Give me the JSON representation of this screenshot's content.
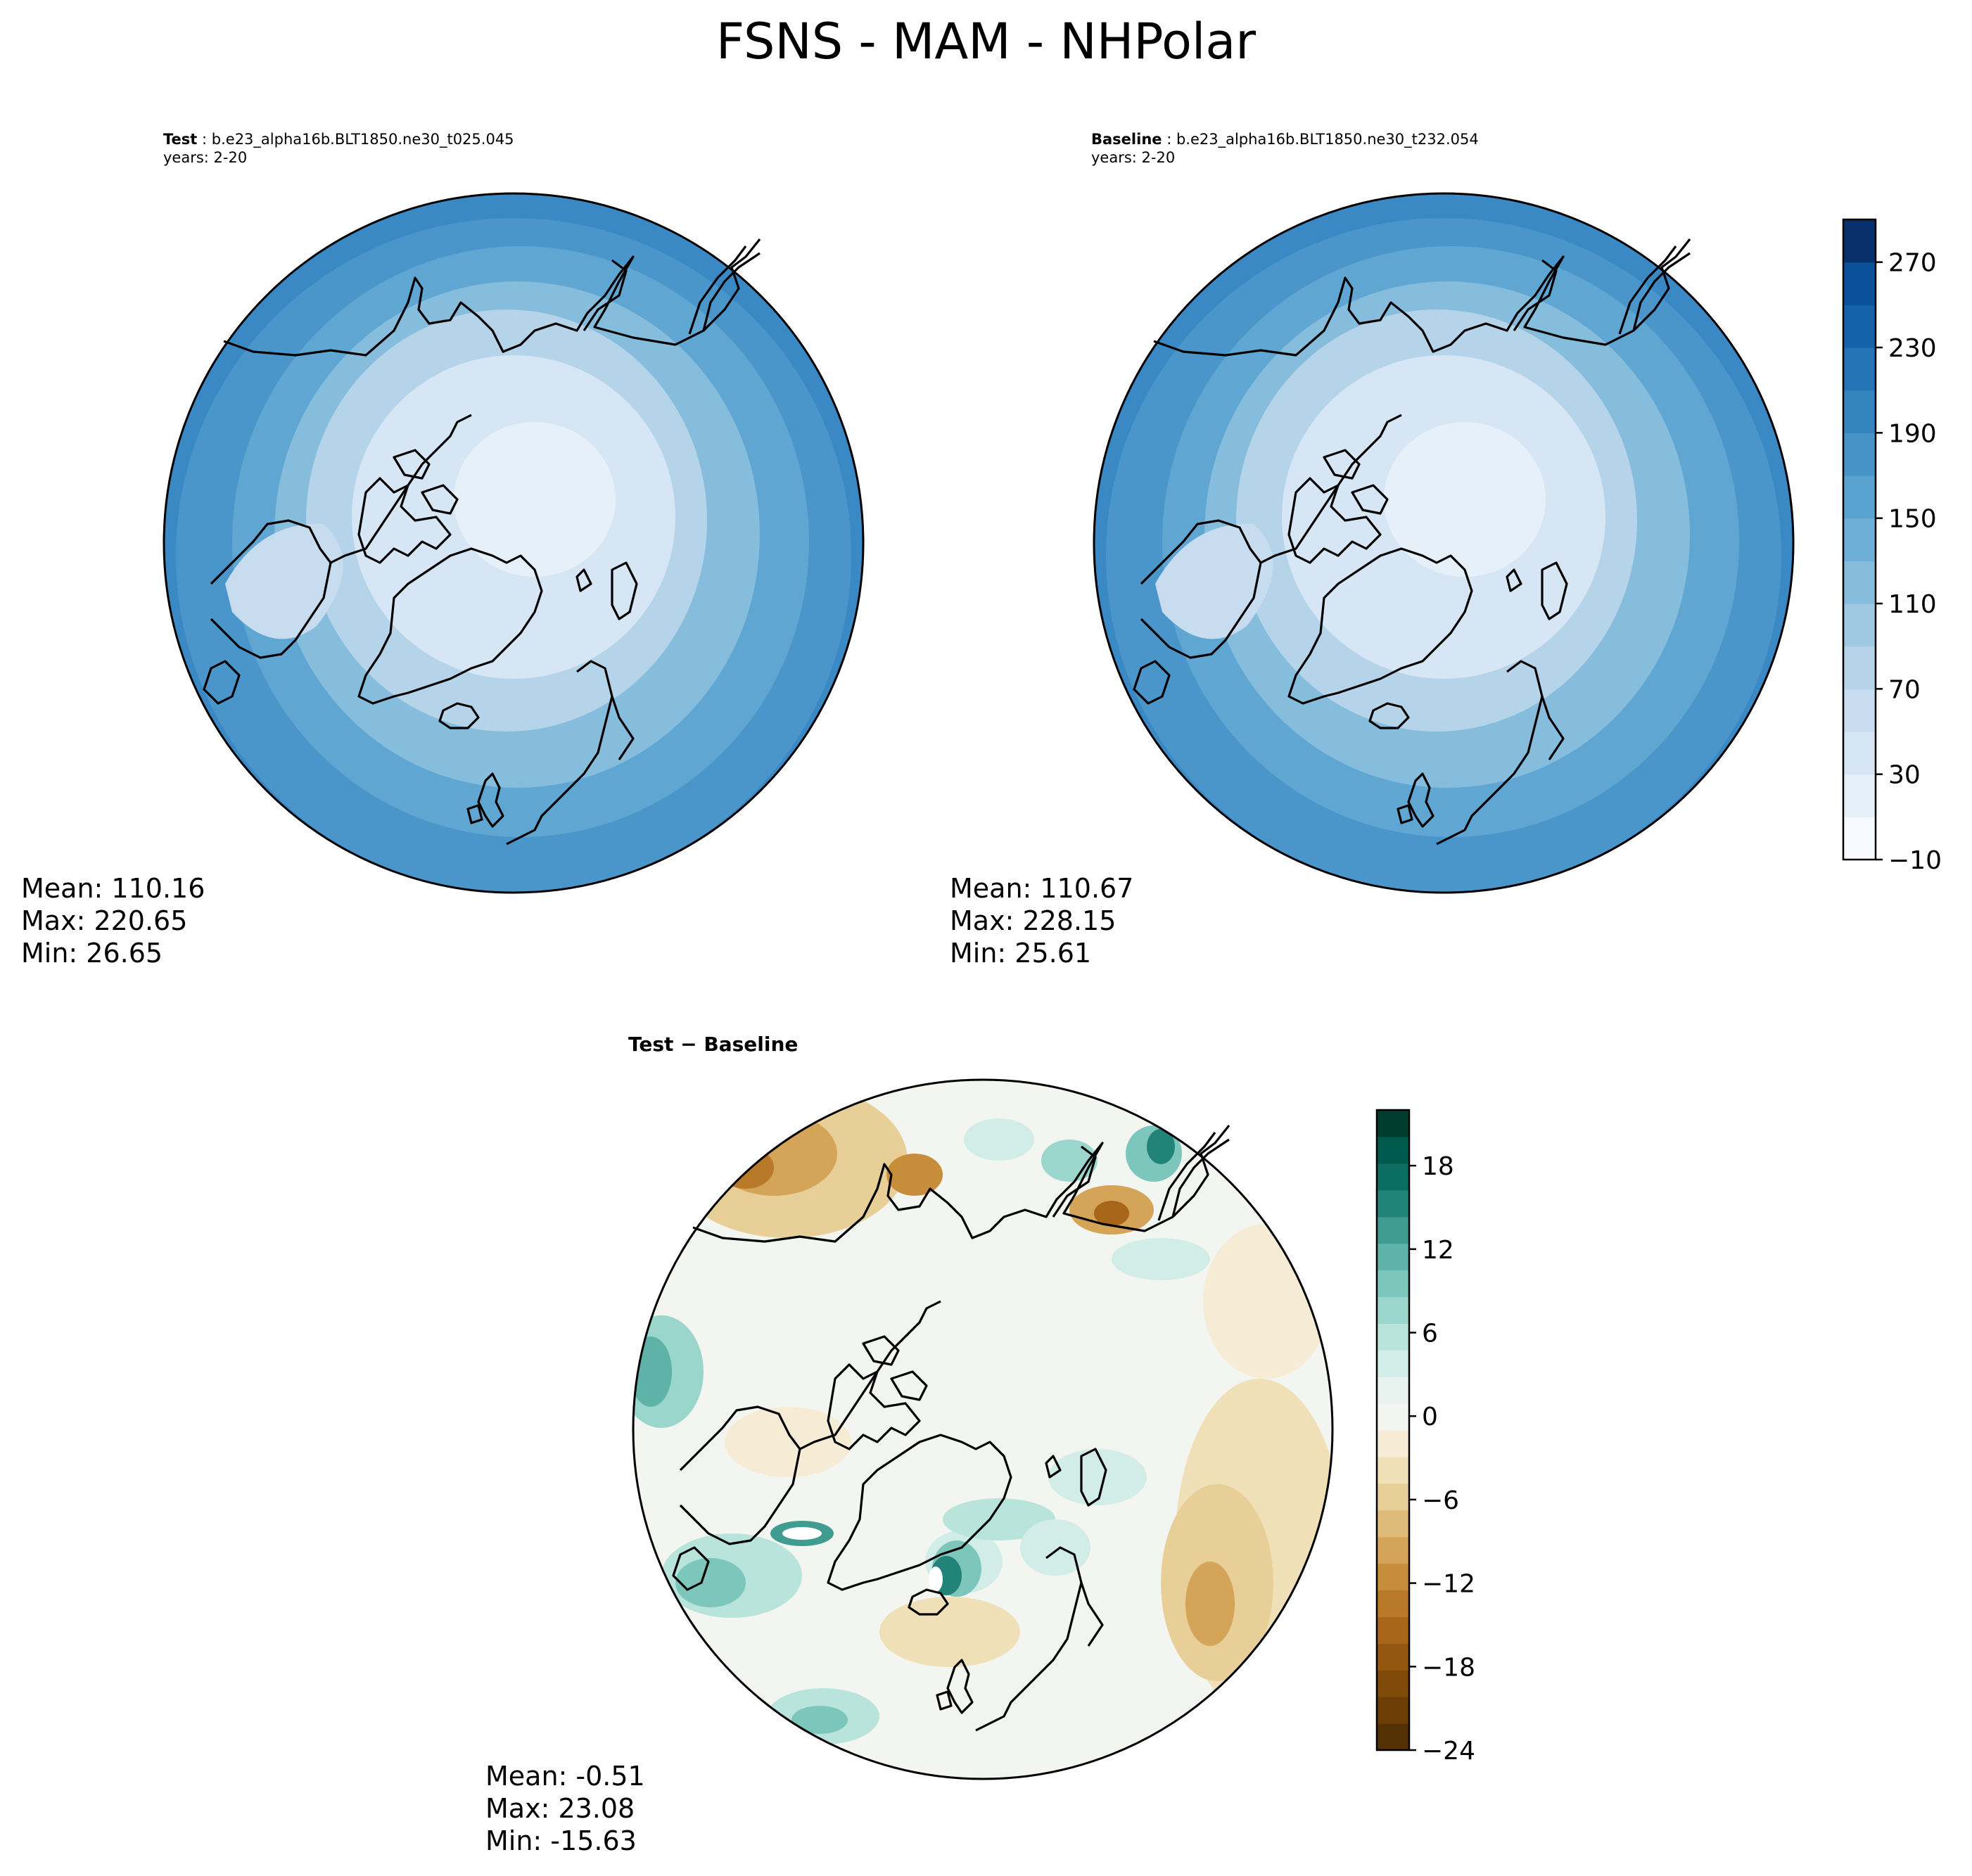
{
  "title": "FSNS - MAM - NHPolar",
  "panels": {
    "test": {
      "label": "Test",
      "case": "b.e23_alpha16b.BLT1850.ne30_t025.045",
      "years": "years: 2-20",
      "mean": "Mean: 110.16",
      "max": "Max: 220.65",
      "min": "Min: 26.65"
    },
    "baseline": {
      "label": "Baseline",
      "case": "b.e23_alpha16b.BLT1850.ne30_t232.054",
      "years": "years: 2-20",
      "mean": "Mean: 110.67",
      "max": "Max: 228.15",
      "min": "Min: 25.61"
    },
    "diff": {
      "title": "Test − Baseline",
      "mean": "Mean: -0.51",
      "max": "Max: 23.08",
      "min": "Min: -15.63"
    }
  },
  "colorbars": {
    "main": {
      "ticks": [
        "−10",
        "30",
        "70",
        "110",
        "150",
        "190",
        "230",
        "270"
      ],
      "tick_values": [
        -10,
        30,
        70,
        110,
        150,
        190,
        230,
        270
      ],
      "range": [
        -10,
        290
      ],
      "colors": [
        "#f7fbff",
        "#e6f0f9",
        "#d7e6f5",
        "#c8dcf0",
        "#b5d4e9",
        "#9fc9e2",
        "#87bddc",
        "#6eafd7",
        "#5aa2cf",
        "#4694c7",
        "#3484bf",
        "#2373b5",
        "#1462a8",
        "#0a519a",
        "#08306b"
      ]
    },
    "diff": {
      "ticks": [
        "−24",
        "−18",
        "−12",
        "−6",
        "0",
        "6",
        "12",
        "18"
      ],
      "tick_values": [
        -24,
        -18,
        -12,
        -6,
        0,
        6,
        12,
        18
      ],
      "range": [
        -24,
        22
      ],
      "colors": [
        "#543005",
        "#6b3d07",
        "#7f4a0a",
        "#935710",
        "#a8661b",
        "#b87929",
        "#c68d3b",
        "#d4a458",
        "#dfbb79",
        "#e8cf98",
        "#f0e0b8",
        "#f6ecd6",
        "#f3f5f1",
        "#e8f3f0",
        "#d2ede7",
        "#b8e4dc",
        "#9ad6cc",
        "#7dc6bb",
        "#5eb2a7",
        "#3e9c90",
        "#228479",
        "#0c6d62",
        "#005a4e",
        "#003c30"
      ]
    }
  },
  "colors": {
    "coast": "#000000",
    "pole_light": "#e6f0f9",
    "ocean_blue": "#3a89c5"
  }
}
